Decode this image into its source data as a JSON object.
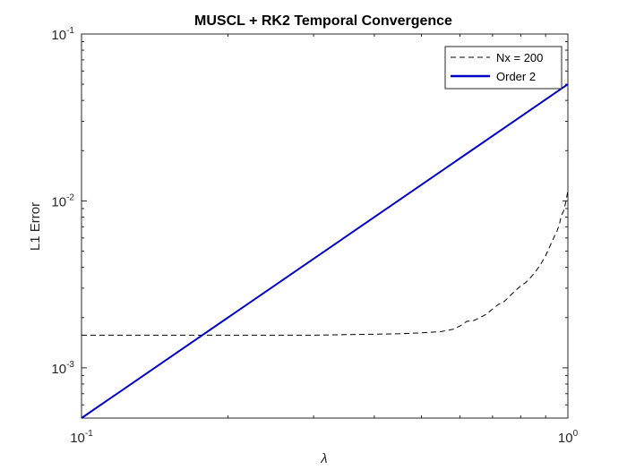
{
  "chart_data": {
    "type": "line",
    "title": "MUSCL + RK2 Temporal Convergence",
    "xlabel": "λ",
    "ylabel": "L1 Error",
    "xscale": "log",
    "yscale": "log",
    "xlim": [
      0.1,
      1
    ],
    "ylim": [
      0.0005,
      0.1
    ],
    "xticks": [
      {
        "value": 0.1,
        "base": "10",
        "exp": "-1"
      },
      {
        "value": 1,
        "base": "10",
        "exp": "0"
      }
    ],
    "yticks": [
      {
        "value": 0.001,
        "base": "10",
        "exp": "-3"
      },
      {
        "value": 0.01,
        "base": "10",
        "exp": "-2"
      },
      {
        "value": 0.1,
        "base": "10",
        "exp": "-1"
      }
    ],
    "grid": false,
    "legend": {
      "position": "top-right"
    },
    "series": [
      {
        "name": "Nx = 200",
        "color": "#000000",
        "style": "dashed",
        "x": [
          0.1,
          0.15,
          0.2,
          0.25,
          0.3,
          0.35,
          0.4,
          0.45,
          0.5,
          0.55,
          0.58,
          0.6,
          0.62,
          0.64,
          0.66,
          0.68,
          0.7,
          0.72,
          0.74,
          0.76,
          0.78,
          0.8,
          0.82,
          0.84,
          0.86,
          0.88,
          0.9,
          0.92,
          0.94,
          0.95,
          0.96,
          0.97,
          0.98,
          0.99,
          1.0
        ],
        "y": [
          0.00157,
          0.00157,
          0.00157,
          0.00157,
          0.00157,
          0.00158,
          0.00159,
          0.0016,
          0.00162,
          0.00165,
          0.0017,
          0.00178,
          0.0019,
          0.00192,
          0.002,
          0.0021,
          0.00225,
          0.0024,
          0.0025,
          0.0027,
          0.0029,
          0.0031,
          0.00325,
          0.0035,
          0.0038,
          0.0042,
          0.0047,
          0.0054,
          0.0062,
          0.0066,
          0.0072,
          0.0082,
          0.0087,
          0.0098,
          0.0115
        ]
      },
      {
        "name": "Order 2",
        "color": "#0000c8",
        "style": "solid",
        "x": [
          0.1,
          1.0
        ],
        "y": [
          0.0005,
          0.05
        ]
      }
    ]
  }
}
